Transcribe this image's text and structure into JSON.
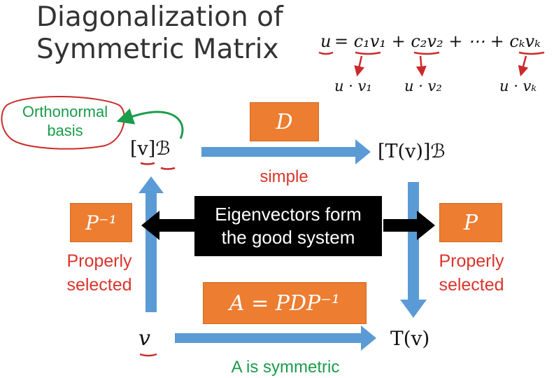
{
  "title": {
    "line1": "Diagonalization of",
    "line2": "Symmetric Matrix"
  },
  "formula": {
    "lhs": "u",
    "rhs": "= c₁v₁ + c₂v₂ + ⋯ + cₖvₖ",
    "coef1": "u · v₁",
    "coef2": "u · v₂",
    "coefk": "u · vₖ"
  },
  "diagram": {
    "note_orthonormal_line1": "Orthonormal",
    "note_orthonormal_line2": "basis",
    "coord_v": "[v]ℬ",
    "coord_tv": "[T(v)]ℬ",
    "matrix_d": "D",
    "matrix_p_inverse": "P⁻¹",
    "matrix_p": "P",
    "matrix_a": "A = PDP⁻¹",
    "label_simple": "simple",
    "left_note_line1": "Properly",
    "left_note_line2": "selected",
    "right_note_line1": "Properly",
    "right_note_line2": "selected",
    "eigen_line1": "Eigenvectors form",
    "eigen_line2": "the good system",
    "vector_v": "v",
    "vector_tv": "T(v)",
    "bottom_note": "A is symmetric"
  },
  "colors": {
    "arrow_blue": "#5b9bd5",
    "box_orange": "#ed7d31",
    "text_red": "#d9352b",
    "text_green": "#1a9c4a",
    "annotation_red": "#cc2a2a",
    "annotation_green": "#1a9c4a"
  }
}
